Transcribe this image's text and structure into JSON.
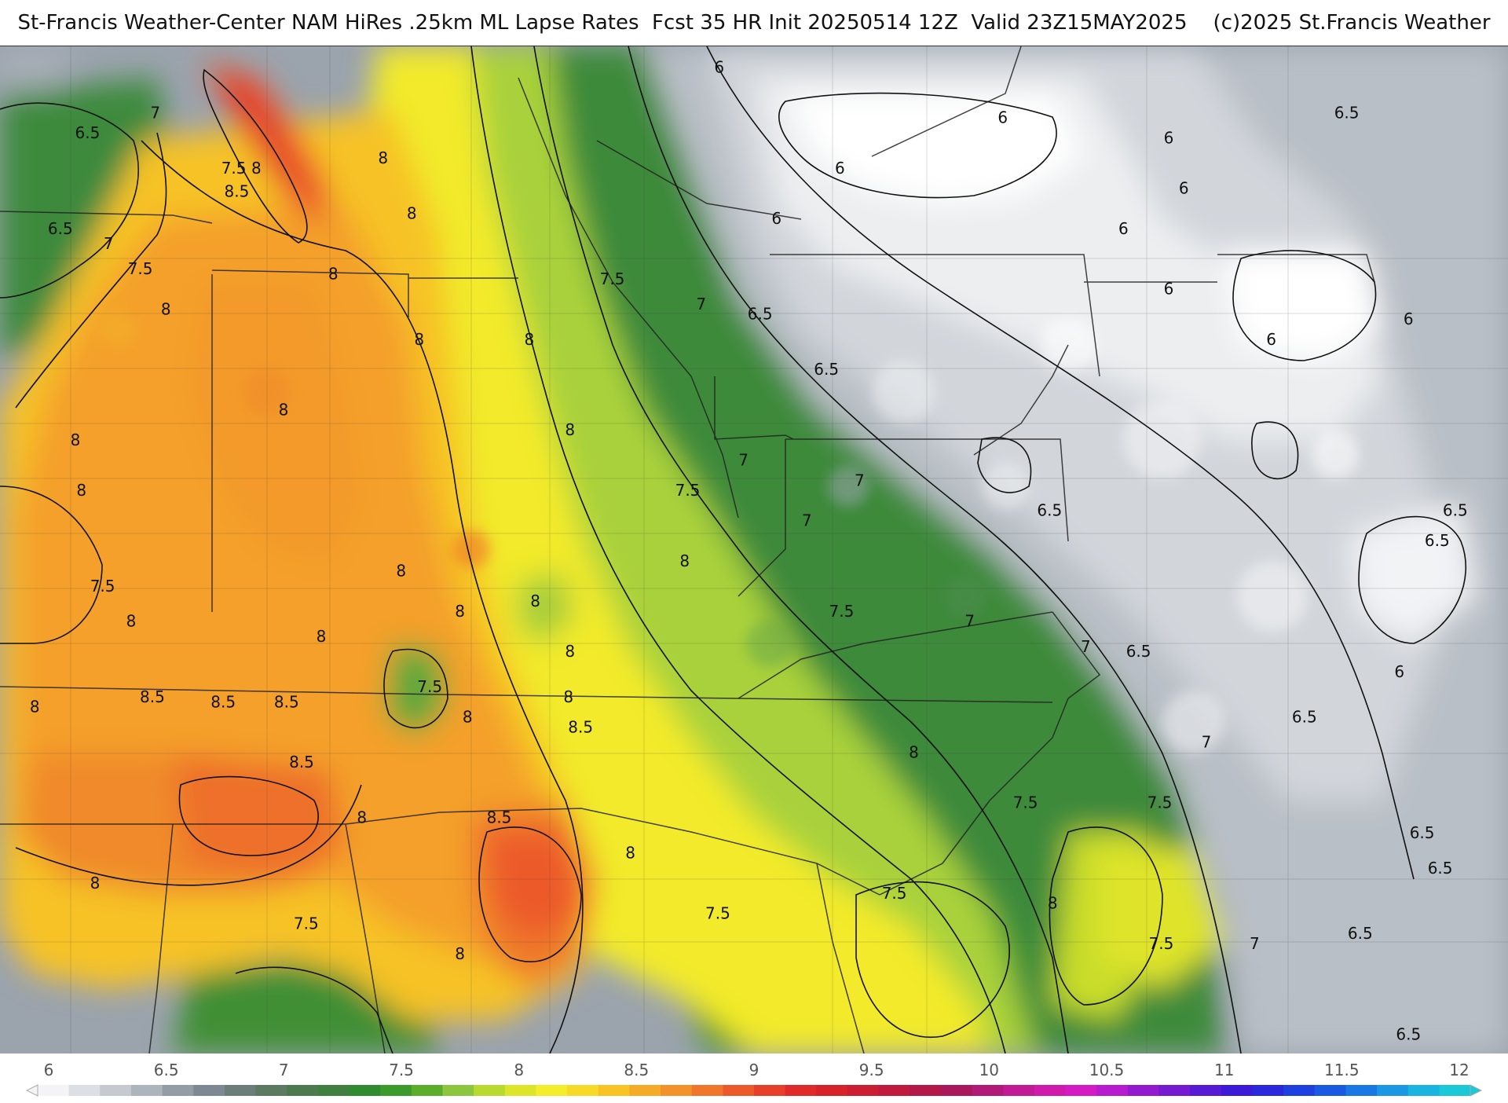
{
  "title": "St-Francis Weather-Center NAM HiRes .25km ML Lapse Rates  Fcst 35 HR Init 20250514 12Z  Valid 23Z15MAY2025    (c)2025 St.Francis Weather",
  "colors": {
    "land_white": "#ffffff",
    "gray_light": "#d4d7dc",
    "gray_mid": "#a9b0b9",
    "gray_dark": "#7d8794",
    "green_dark": "#2f7a3a",
    "green": "#3d9b33",
    "green_light": "#8cc63f",
    "yellow_green": "#cfe22d",
    "yellow": "#f4ee2a",
    "gold": "#f7c325",
    "orange": "#f39a2b",
    "orange_red": "#ef6a2c",
    "red": "#e33a2a"
  },
  "contour_labels": [
    {
      "text": "6",
      "lon": 0.477,
      "lat": 0.02
    },
    {
      "text": "6",
      "lon": 0.665,
      "lat": 0.07
    },
    {
      "text": "6",
      "lon": 0.775,
      "lat": 0.09
    },
    {
      "text": "6",
      "lon": 0.557,
      "lat": 0.12
    },
    {
      "text": "6",
      "lon": 0.785,
      "lat": 0.14
    },
    {
      "text": "6",
      "lon": 0.515,
      "lat": 0.17
    },
    {
      "text": "6",
      "lon": 0.745,
      "lat": 0.18
    },
    {
      "text": "6",
      "lon": 0.775,
      "lat": 0.24
    },
    {
      "text": "6",
      "lon": 0.843,
      "lat": 0.29
    },
    {
      "text": "6",
      "lon": 0.934,
      "lat": 0.27
    },
    {
      "text": "6",
      "lon": 0.928,
      "lat": 0.62
    },
    {
      "text": "6.5",
      "lon": 0.058,
      "lat": 0.085
    },
    {
      "text": "6.5",
      "lon": 0.04,
      "lat": 0.18
    },
    {
      "text": "6.5",
      "lon": 0.893,
      "lat": 0.065
    },
    {
      "text": "6.5",
      "lon": 0.504,
      "lat": 0.265
    },
    {
      "text": "6.5",
      "lon": 0.548,
      "lat": 0.32
    },
    {
      "text": "6.5",
      "lon": 0.696,
      "lat": 0.46
    },
    {
      "text": "6.5",
      "lon": 0.755,
      "lat": 0.6
    },
    {
      "text": "6.5",
      "lon": 0.865,
      "lat": 0.665
    },
    {
      "text": "6.5",
      "lon": 0.965,
      "lat": 0.46
    },
    {
      "text": "6.5",
      "lon": 0.953,
      "lat": 0.49
    },
    {
      "text": "6.5",
      "lon": 0.943,
      "lat": 0.78
    },
    {
      "text": "6.5",
      "lon": 0.955,
      "lat": 0.815
    },
    {
      "text": "6.5",
      "lon": 0.902,
      "lat": 0.88
    },
    {
      "text": "6.5",
      "lon": 0.934,
      "lat": 0.98
    },
    {
      "text": "7",
      "lon": 0.103,
      "lat": 0.065
    },
    {
      "text": "7",
      "lon": 0.072,
      "lat": 0.195
    },
    {
      "text": "7",
      "lon": 0.465,
      "lat": 0.255
    },
    {
      "text": "7",
      "lon": 0.493,
      "lat": 0.41
    },
    {
      "text": "7",
      "lon": 0.57,
      "lat": 0.43
    },
    {
      "text": "7",
      "lon": 0.535,
      "lat": 0.47
    },
    {
      "text": "7",
      "lon": 0.643,
      "lat": 0.57
    },
    {
      "text": "7",
      "lon": 0.72,
      "lat": 0.595
    },
    {
      "text": "7",
      "lon": 0.8,
      "lat": 0.69
    },
    {
      "text": "7",
      "lon": 0.832,
      "lat": 0.89
    },
    {
      "text": "7.5",
      "lon": 0.155,
      "lat": 0.12
    },
    {
      "text": "7.5",
      "lon": 0.093,
      "lat": 0.22
    },
    {
      "text": "7.5",
      "lon": 0.406,
      "lat": 0.23
    },
    {
      "text": "7.5",
      "lon": 0.068,
      "lat": 0.535
    },
    {
      "text": "7.5",
      "lon": 0.456,
      "lat": 0.44
    },
    {
      "text": "7.5",
      "lon": 0.285,
      "lat": 0.635
    },
    {
      "text": "7.5",
      "lon": 0.558,
      "lat": 0.56
    },
    {
      "text": "7.5",
      "lon": 0.68,
      "lat": 0.75
    },
    {
      "text": "7.5",
      "lon": 0.769,
      "lat": 0.75
    },
    {
      "text": "7.5",
      "lon": 0.593,
      "lat": 0.84
    },
    {
      "text": "7.5",
      "lon": 0.476,
      "lat": 0.86
    },
    {
      "text": "7.5",
      "lon": 0.203,
      "lat": 0.87
    },
    {
      "text": "7.5",
      "lon": 0.77,
      "lat": 0.89
    },
    {
      "text": "8",
      "lon": 0.17,
      "lat": 0.12
    },
    {
      "text": "8",
      "lon": 0.254,
      "lat": 0.11
    },
    {
      "text": "8",
      "lon": 0.273,
      "lat": 0.165
    },
    {
      "text": "8",
      "lon": 0.221,
      "lat": 0.225
    },
    {
      "text": "8",
      "lon": 0.11,
      "lat": 0.26
    },
    {
      "text": "8",
      "lon": 0.278,
      "lat": 0.29
    },
    {
      "text": "8",
      "lon": 0.351,
      "lat": 0.29
    },
    {
      "text": "8",
      "lon": 0.188,
      "lat": 0.36
    },
    {
      "text": "8",
      "lon": 0.05,
      "lat": 0.39
    },
    {
      "text": "8",
      "lon": 0.054,
      "lat": 0.44
    },
    {
      "text": "8",
      "lon": 0.378,
      "lat": 0.38
    },
    {
      "text": "8",
      "lon": 0.266,
      "lat": 0.52
    },
    {
      "text": "8",
      "lon": 0.454,
      "lat": 0.51
    },
    {
      "text": "8",
      "lon": 0.355,
      "lat": 0.55
    },
    {
      "text": "8",
      "lon": 0.305,
      "lat": 0.56
    },
    {
      "text": "8",
      "lon": 0.087,
      "lat": 0.57
    },
    {
      "text": "8",
      "lon": 0.213,
      "lat": 0.585
    },
    {
      "text": "8",
      "lon": 0.378,
      "lat": 0.6
    },
    {
      "text": "8",
      "lon": 0.023,
      "lat": 0.655
    },
    {
      "text": "8",
      "lon": 0.377,
      "lat": 0.645
    },
    {
      "text": "8",
      "lon": 0.31,
      "lat": 0.665
    },
    {
      "text": "8",
      "lon": 0.606,
      "lat": 0.7
    },
    {
      "text": "8",
      "lon": 0.24,
      "lat": 0.765
    },
    {
      "text": "8",
      "lon": 0.418,
      "lat": 0.8
    },
    {
      "text": "8",
      "lon": 0.063,
      "lat": 0.83
    },
    {
      "text": "8",
      "lon": 0.305,
      "lat": 0.9
    },
    {
      "text": "8",
      "lon": 0.698,
      "lat": 0.85
    },
    {
      "text": "8.5",
      "lon": 0.157,
      "lat": 0.143
    },
    {
      "text": "8.5",
      "lon": 0.101,
      "lat": 0.645
    },
    {
      "text": "8.5",
      "lon": 0.148,
      "lat": 0.65
    },
    {
      "text": "8.5",
      "lon": 0.19,
      "lat": 0.65
    },
    {
      "text": "8.5",
      "lon": 0.2,
      "lat": 0.71
    },
    {
      "text": "8.5",
      "lon": 0.385,
      "lat": 0.675
    },
    {
      "text": "8.5",
      "lon": 0.331,
      "lat": 0.765
    }
  ],
  "colorbar": {
    "ticks": [
      "6",
      "6.5",
      "7",
      "7.5",
      "8",
      "8.5",
      "9",
      "9.5",
      "10",
      "10.5",
      "11",
      "11.5",
      "12"
    ],
    "value_min": 6,
    "value_max": 12,
    "colors": [
      "#f4f4f6",
      "#dcdfe3",
      "#c6cad0",
      "#aeb4bc",
      "#949ca6",
      "#7e8894",
      "#6b7e79",
      "#5c7a5f",
      "#4c7a4c",
      "#3f8040",
      "#2f8a30",
      "#3a9a2a",
      "#5aae2a",
      "#8cc63f",
      "#b8d92e",
      "#dce52a",
      "#f4ee2a",
      "#f7da28",
      "#f7c325",
      "#f5ab27",
      "#f3922b",
      "#f0762c",
      "#ec5a2c",
      "#e6402a",
      "#e02a2a",
      "#d8222a",
      "#cc1e32",
      "#c01a3c",
      "#b31848",
      "#a8185a",
      "#b21a78",
      "#c21a94",
      "#d01aac",
      "#d41ac4",
      "#b81ad0",
      "#941ad0",
      "#741ad0",
      "#561ad6",
      "#3c1ad8",
      "#2a28dc",
      "#1e40e0",
      "#1a5ae2",
      "#1a78e4",
      "#1a98e4",
      "#1ab4e0",
      "#1ac8d8"
    ]
  }
}
